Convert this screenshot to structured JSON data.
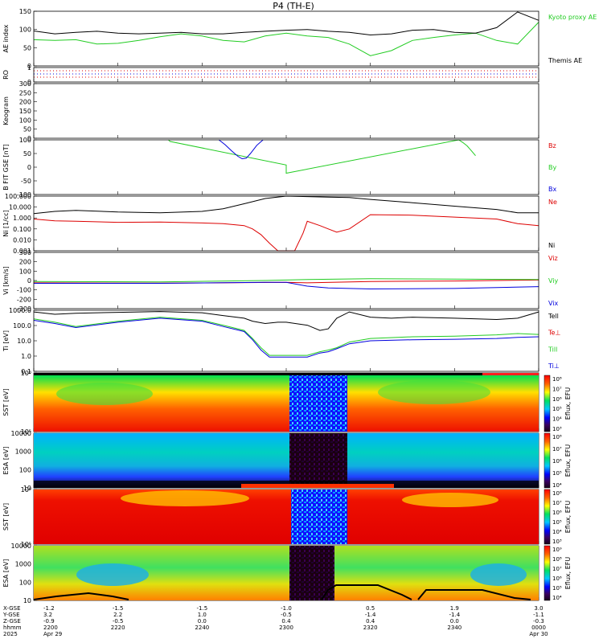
{
  "title": "P4 (TH-E)",
  "colors": {
    "kyoto": "#22cc22",
    "themis": "#000000",
    "bz": "#dd0000",
    "by": "#22cc22",
    "bx": "#0000dd",
    "ne": "#dd0000",
    "ni": "#000000",
    "vz": "#dd0000",
    "vy": "#22cc22",
    "vx": "#0000dd"
  },
  "colorbar_labels": [
    "Eflux, EFU",
    "Eflux, EFU",
    "Eflux, EFU",
    "Eflux, EFU"
  ],
  "colorbar_ticks": [
    [
      "10⁸",
      "10⁷",
      "10⁶",
      "10⁵",
      "10⁴",
      "10³"
    ],
    [
      "10⁸",
      "10⁷",
      "10⁶",
      "10⁵",
      "10⁴"
    ],
    [
      "10⁸",
      "10⁷",
      "10⁶",
      "10⁵",
      "10⁴",
      "10³"
    ],
    [
      "10⁹",
      "10⁸",
      "10⁷",
      "10⁶",
      "10⁵",
      "10⁴"
    ]
  ],
  "footer": {
    "row_labels": [
      "X-GSE",
      "Y-GSE",
      "Z-GSE",
      "hhmm",
      "2025"
    ],
    "columns": [
      {
        "vals": [
          "-1.2",
          "3.2",
          "-0.9",
          "2200",
          "Apr 29"
        ]
      },
      {
        "vals": [
          "-1.5",
          "2.2",
          "-0.5",
          "2220",
          ""
        ]
      },
      {
        "vals": [
          "-1.5",
          "1.0",
          "0.0",
          "2240",
          ""
        ]
      },
      {
        "vals": [
          "-1.0",
          "-0.5",
          "0.4",
          "2300",
          ""
        ]
      },
      {
        "vals": [
          "0.5",
          "-1.4",
          "0.4",
          "2320",
          ""
        ]
      },
      {
        "vals": [
          "1.9",
          "-1.4",
          "0.0",
          "2340",
          ""
        ]
      },
      {
        "vals": [
          "3.0",
          "-1.1",
          "-0.3",
          "0000",
          "Apr 30"
        ]
      }
    ]
  },
  "chart_data": [
    {
      "type": "line",
      "ylabel": "AE index",
      "ylim": [
        0,
        150
      ],
      "yticks": [
        "150",
        "100",
        "50",
        "0"
      ],
      "series": [
        {
          "name": "Kyoto proxy AE",
          "x": [
            2200,
            2205,
            2210,
            2215,
            2220,
            2225,
            2230,
            2235,
            2240,
            2245,
            2250,
            2255,
            2300,
            2305,
            2310,
            2315,
            2320,
            2325,
            2330,
            2335,
            2340,
            2345,
            2350,
            2355,
            2400
          ],
          "y": [
            72,
            70,
            72,
            60,
            62,
            70,
            80,
            88,
            82,
            70,
            66,
            82,
            90,
            82,
            78,
            60,
            28,
            42,
            70,
            78,
            85,
            90,
            70,
            60,
            120
          ]
        },
        {
          "name": "Themis AE",
          "x": [
            2200,
            2205,
            2210,
            2215,
            2220,
            2225,
            2230,
            2235,
            2240,
            2245,
            2250,
            2255,
            2300,
            2305,
            2310,
            2315,
            2320,
            2325,
            2330,
            2335,
            2340,
            2345,
            2350,
            2355,
            2400
          ],
          "y": [
            96,
            88,
            92,
            95,
            90,
            88,
            90,
            92,
            88,
            88,
            92,
            95,
            98,
            100,
            95,
            92,
            85,
            88,
            98,
            100,
            92,
            90,
            105,
            148,
            125
          ]
        }
      ]
    },
    {
      "type": "line",
      "ylabel": "RO",
      "ylim": [
        0,
        1
      ],
      "yticks": [
        "1",
        "0"
      ],
      "series": []
    },
    {
      "type": "heatmap",
      "ylabel": "Keogram",
      "ylim": [
        0,
        300
      ],
      "yticks": [
        "300",
        "250",
        "200",
        "150",
        "100",
        "50",
        "0"
      ]
    },
    {
      "type": "line",
      "ylabel": "B FIT GSE [nT]",
      "ylim": [
        -100,
        100
      ],
      "yticks": [
        "100",
        "50",
        "0",
        "-50",
        "-100"
      ],
      "series": [
        {
          "name": "Bz",
          "x": [],
          "y": []
        },
        {
          "name": "By",
          "x": [
            2232.0,
            2232.4,
            2300.0,
            2300.0,
            2341.0,
            2342.0,
            2343.0,
            2344.0,
            2345.0
          ],
          "y": [
            100,
            94,
            8,
            -22,
            100,
            90,
            78,
            60,
            42
          ]
        },
        {
          "name": "Bx",
          "x": [
            2244.0,
            2245.5,
            2247.0,
            2248.5,
            2249.5,
            2250.5,
            2251.5,
            2253.0,
            2254.5
          ],
          "y": [
            100,
            82,
            60,
            40,
            31,
            33,
            50,
            80,
            100
          ]
        }
      ]
    },
    {
      "type": "line",
      "ylabel": "Ni [1/cc]",
      "yscale": "log",
      "ylim": [
        0.001,
        100
      ],
      "yticks": [
        "100.000",
        "10.000",
        "1.000",
        "0.100",
        "0.010",
        "0.001"
      ],
      "series": [
        {
          "name": "Ne",
          "x": [
            2200,
            2205,
            2210,
            2220,
            2230,
            2240,
            2245,
            2250,
            2252,
            2254,
            2256,
            2258,
            2300,
            2302,
            2304,
            2305,
            2308,
            2310,
            2312,
            2315,
            2320,
            2330,
            2340,
            2350,
            2355,
            2400
          ],
          "y": [
            0.8,
            0.55,
            0.5,
            0.4,
            0.42,
            0.35,
            0.3,
            0.2,
            0.1,
            0.03,
            0.005,
            0.001,
            0.001,
            0.001,
            0.04,
            0.5,
            0.2,
            0.1,
            0.05,
            0.1,
            2.0,
            1.8,
            1.2,
            0.8,
            0.3,
            0.2
          ]
        },
        {
          "name": "Ni",
          "x": [
            2200,
            2205,
            2210,
            2220,
            2230,
            2240,
            2245,
            2250,
            2255,
            2300,
            2305,
            2310,
            2315,
            2320,
            2330,
            2340,
            2350,
            2355,
            2400
          ],
          "y": [
            2.5,
            4,
            5,
            3.5,
            3,
            4,
            7,
            20,
            60,
            100,
            90,
            80,
            75,
            50,
            25,
            12,
            6,
            3,
            3
          ]
        }
      ]
    },
    {
      "type": "line",
      "ylabel": "Vi [km/s]",
      "ylim": [
        -300,
        300
      ],
      "yticks": [
        "300",
        "200",
        "100",
        "0",
        "-100",
        "-200",
        "-300"
      ],
      "series": [
        {
          "name": "Viz",
          "x": [
            2200,
            2230,
            2300,
            2305,
            2320,
            2340,
            2400
          ],
          "y": [
            -25,
            -28,
            -20,
            -25,
            -10,
            -5,
            5
          ]
        },
        {
          "name": "Viy",
          "x": [
            2200,
            2230,
            2255,
            2300,
            2305,
            2320,
            2340,
            2400
          ],
          "y": [
            -10,
            -15,
            0,
            5,
            10,
            20,
            15,
            10
          ]
        },
        {
          "name": "Vix",
          "x": [
            2200,
            2230,
            2255,
            2300,
            2305,
            2310,
            2320,
            2340,
            2400
          ],
          "y": [
            -30,
            -30,
            -20,
            -20,
            -60,
            -80,
            -90,
            -85,
            -65
          ]
        }
      ]
    },
    {
      "type": "line",
      "ylabel": "Ti [eV]",
      "yscale": "log",
      "ylim": [
        0.05,
        2000
      ],
      "yticks": [
        "1000.0",
        "100.0",
        "10.0",
        "1.0",
        "0.1"
      ],
      "series": [
        {
          "name": "Tell",
          "x": [
            2200,
            2205,
            2210,
            2220,
            2230,
            2240,
            2245,
            2250,
            2252,
            2255,
            2258,
            2300,
            2305,
            2308,
            2310,
            2312,
            2315,
            2320,
            2325,
            2330,
            2340,
            2350,
            2355,
            2400
          ],
          "y": [
            1500,
            1000,
            1200,
            1400,
            1600,
            1300,
            800,
            500,
            300,
            200,
            250,
            250,
            150,
            60,
            80,
            500,
            1500,
            600,
            500,
            600,
            500,
            400,
            500,
            1500
          ]
        },
        {
          "name": "Te⊥",
          "x": [],
          "y": []
        },
        {
          "name": "Till",
          "x": [
            2200,
            2205,
            2210,
            2220,
            2230,
            2240,
            2245,
            2250,
            2252,
            2254,
            2256,
            2258,
            2300,
            2305,
            2308,
            2310,
            2312,
            2315,
            2320,
            2330,
            2340,
            2350,
            2355,
            2400
          ],
          "y": [
            450,
            250,
            120,
            300,
            600,
            350,
            150,
            60,
            15,
            3,
            0.8,
            0.8,
            0.8,
            0.8,
            1.5,
            2,
            3,
            8,
            15,
            20,
            22,
            28,
            35,
            30
          ]
        },
        {
          "name": "Ti⊥",
          "x": [
            2200,
            2205,
            2210,
            2220,
            2230,
            2240,
            2245,
            2250,
            2252,
            2254,
            2256,
            2258,
            2300,
            2305,
            2308,
            2310,
            2312,
            2315,
            2320,
            2330,
            2340,
            2350,
            2355,
            2400
          ],
          "y": [
            350,
            200,
            100,
            250,
            500,
            300,
            120,
            50,
            12,
            2,
            0.6,
            0.6,
            0.6,
            0.6,
            1.2,
            1.5,
            2.5,
            6,
            10,
            12,
            13,
            15,
            18,
            20
          ]
        }
      ]
    },
    {
      "type": "heatmap",
      "ylabel": "SST [eV]",
      "yticks": [
        "10⁶",
        "10⁵"
      ]
    },
    {
      "type": "heatmap",
      "ylabel": "ESA [eV]",
      "yticks": [
        "10000",
        "1000",
        "100",
        "10"
      ]
    },
    {
      "type": "heatmap",
      "ylabel": "SST [eV]",
      "yticks": [
        "10⁶",
        "10⁵"
      ]
    },
    {
      "type": "heatmap",
      "ylabel": "ESA [eV]",
      "yticks": [
        "10000",
        "1000",
        "100",
        "10"
      ]
    }
  ]
}
